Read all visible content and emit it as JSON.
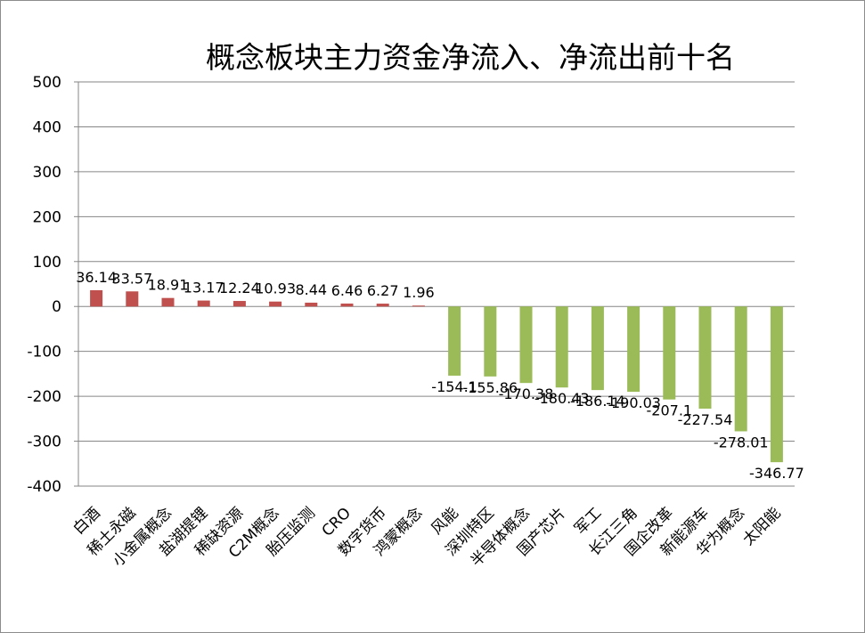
{
  "chart_data": {
    "type": "bar",
    "title": "概念板块主力资金净流入、净流出前十名",
    "xlabel": "",
    "ylabel": "",
    "ylim": [
      -400,
      500
    ],
    "yticks": [
      500,
      400,
      300,
      200,
      100,
      0,
      -100,
      -200,
      -300,
      -400
    ],
    "grid": true,
    "legend": "none",
    "categories": [
      "白酒",
      "稀土永磁",
      "小金属概念",
      "盐湖提锂",
      "稀缺资源",
      "C2M概念",
      "胎压监测",
      "CRO",
      "数字货币",
      "鸿蒙概念",
      "风能",
      "深圳特区",
      "半导体概念",
      "国产芯片",
      "军工",
      "长江三角",
      "国企改革",
      "新能源车",
      "华为概念",
      "太阳能"
    ],
    "values": [
      36.14,
      33.57,
      18.91,
      13.17,
      12.24,
      10.93,
      8.44,
      6.46,
      6.27,
      1.96,
      -154.1,
      -155.86,
      -170.38,
      -180.43,
      -186.14,
      -190.03,
      -207.1,
      -227.54,
      -278.01,
      -346.77
    ],
    "data_labels": [
      "36.14",
      "33.57",
      "18.91",
      "13.17",
      "12.24",
      "10.93",
      "8.44",
      "6.46",
      "6.27",
      "1.96",
      "-154.1",
      "-155.86",
      "-170.38",
      "-180.43",
      "-186.14",
      "-190.03",
      "-207.1",
      "-227.54",
      "-278.01",
      "-346.77"
    ],
    "colors": {
      "positive": "#c0504d",
      "negative": "#9bbb59",
      "grid": "#868686",
      "axis": "#868686"
    }
  }
}
